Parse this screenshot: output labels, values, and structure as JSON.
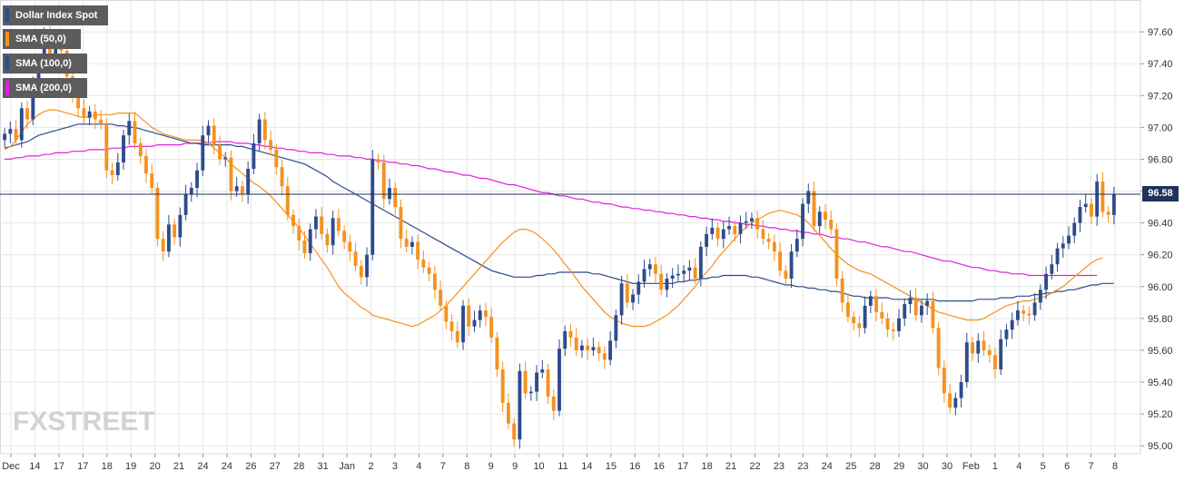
{
  "chart_data": {
    "type": "candlestick",
    "instrument": "Dollar Index Spot",
    "legend": [
      {
        "label": "Dollar Index Spot",
        "color": "#2e4b8c"
      },
      {
        "label": "SMA (50,0)",
        "color": "#f5921e"
      },
      {
        "label": "SMA (100,0)",
        "color": "#2e4b8c"
      },
      {
        "label": "SMA (200,0)",
        "color": "#e020e0"
      }
    ],
    "current_price": "96.58",
    "current_value": 96.58,
    "ylim": [
      94.95,
      97.8
    ],
    "y_ticks": [
      "97.60",
      "97.40",
      "97.20",
      "97.00",
      "96.80",
      "96.60",
      "96.40",
      "96.20",
      "96.00",
      "95.80",
      "95.60",
      "95.40",
      "95.20",
      "95.00"
    ],
    "x_ticks": [
      "Dec",
      "14",
      "17",
      "17",
      "18",
      "19",
      "20",
      "21",
      "24",
      "24",
      "26",
      "27",
      "28",
      "31",
      "Jan",
      "2",
      "3",
      "4",
      "7",
      "8",
      "9",
      "9",
      "10",
      "11",
      "14",
      "15",
      "16",
      "16",
      "17",
      "18",
      "21",
      "22",
      "23",
      "23",
      "24",
      "25",
      "28",
      "29",
      "30",
      "30",
      "Feb",
      "1",
      "4",
      "5",
      "6",
      "7",
      "8"
    ],
    "colors": {
      "up": "#2e4b8c",
      "down": "#f5921e",
      "sma50": "#f5921e",
      "sma100": "#2e4b8c",
      "sma200": "#e020e0",
      "grid": "#e6e6e6"
    },
    "close": [
      96.96,
      96.99,
      96.92,
      97.12,
      97.05,
      97.26,
      97.4,
      97.58,
      97.45,
      97.52,
      97.48,
      97.32,
      97.2,
      97.12,
      97.06,
      97.1,
      97.05,
      97.02,
      96.73,
      96.7,
      96.78,
      96.95,
      97.04,
      96.9,
      96.82,
      96.71,
      96.62,
      96.3,
      96.22,
      96.39,
      96.31,
      96.45,
      96.58,
      96.62,
      96.73,
      96.95,
      97.01,
      96.89,
      96.8,
      96.81,
      96.6,
      96.63,
      96.58,
      96.74,
      96.9,
      97.05,
      96.92,
      96.86,
      96.75,
      96.63,
      96.45,
      96.38,
      96.29,
      96.21,
      96.36,
      96.44,
      96.33,
      96.26,
      96.43,
      96.35,
      96.28,
      96.22,
      96.13,
      96.06,
      96.2,
      96.8,
      96.78,
      96.55,
      96.62,
      96.5,
      96.3,
      96.25,
      96.28,
      96.17,
      96.12,
      96.08,
      95.98,
      95.88,
      95.78,
      95.72,
      95.65,
      95.88,
      95.75,
      95.79,
      95.85,
      95.81,
      95.68,
      95.48,
      95.27,
      95.14,
      95.04,
      95.47,
      95.33,
      95.34,
      95.46,
      95.48,
      95.31,
      95.22,
      95.61,
      95.72,
      95.68,
      95.6,
      95.63,
      95.6,
      95.62,
      95.58,
      95.54,
      95.66,
      95.82,
      96.02,
      95.9,
      95.95,
      96.03,
      96.11,
      96.14,
      96.08,
      95.98,
      96.05,
      96.07,
      96.08,
      96.1,
      96.12,
      96.05,
      96.25,
      96.33,
      96.37,
      96.3,
      96.36,
      96.38,
      96.33,
      96.4,
      96.41,
      96.43,
      96.36,
      96.3,
      96.28,
      96.22,
      96.1,
      96.05,
      96.22,
      96.3,
      96.52,
      96.6,
      96.38,
      96.47,
      96.42,
      96.36,
      96.05,
      95.9,
      95.81,
      95.77,
      95.74,
      95.88,
      95.94,
      95.84,
      95.8,
      95.73,
      95.72,
      95.8,
      95.89,
      95.93,
      95.82,
      95.88,
      95.91,
      95.74,
      95.49,
      95.33,
      95.24,
      95.3,
      95.4,
      95.65,
      95.58,
      95.66,
      95.6,
      95.57,
      95.48,
      95.67,
      95.73,
      95.79,
      95.85,
      95.83,
      95.82,
      95.9,
      95.98,
      96.08,
      96.14,
      96.24,
      96.27,
      96.32,
      96.4,
      96.5,
      96.52,
      96.44,
      96.66,
      96.47,
      96.45,
      96.58
    ],
    "sma50": [
      96.86,
      96.88,
      96.92,
      96.97,
      97.02,
      97.05,
      97.08,
      97.1,
      97.11,
      97.11,
      97.1,
      97.09,
      97.08,
      97.07,
      97.06,
      97.07,
      97.08,
      97.08,
      97.08,
      97.08,
      97.09,
      97.09,
      97.09,
      97.09,
      97.06,
      97.03,
      97.0,
      96.98,
      96.96,
      96.95,
      96.94,
      96.93,
      96.92,
      96.92,
      96.92,
      96.92,
      96.9,
      96.87,
      96.84,
      96.81,
      96.77,
      96.74,
      96.71,
      96.68,
      96.65,
      96.63,
      96.6,
      96.57,
      96.53,
      96.49,
      96.45,
      96.41,
      96.37,
      96.32,
      96.27,
      96.22,
      96.17,
      96.12,
      96.06,
      96.0,
      95.96,
      95.93,
      95.9,
      95.87,
      95.85,
      95.82,
      95.81,
      95.8,
      95.79,
      95.78,
      95.77,
      95.76,
      95.75,
      95.76,
      95.78,
      95.8,
      95.82,
      95.85,
      95.88,
      95.92,
      95.96,
      96.0,
      96.04,
      96.08,
      96.12,
      96.16,
      96.2,
      96.24,
      96.28,
      96.31,
      96.34,
      96.36,
      96.36,
      96.35,
      96.33,
      96.3,
      96.27,
      96.23,
      96.19,
      96.14,
      96.1,
      96.05,
      96.0,
      95.96,
      95.92,
      95.88,
      95.84,
      95.81,
      95.79,
      95.77,
      95.76,
      95.75,
      95.75,
      95.75,
      95.76,
      95.78,
      95.8,
      95.82,
      95.85,
      95.88,
      95.92,
      95.96,
      96.0,
      96.05,
      96.09,
      96.13,
      96.18,
      96.22,
      96.26,
      96.3,
      96.34,
      96.37,
      96.4,
      96.42,
      96.44,
      96.46,
      96.47,
      96.48,
      96.47,
      96.46,
      96.45,
      96.43,
      96.4,
      96.36,
      96.32,
      96.28,
      96.24,
      96.2,
      96.17,
      96.14,
      96.12,
      96.1,
      96.09,
      96.08,
      96.06,
      96.04,
      96.02,
      96.0,
      95.98,
      95.96,
      95.94,
      95.92,
      95.9,
      95.88,
      95.86,
      95.84,
      95.83,
      95.82,
      95.81,
      95.8,
      95.79,
      95.79,
      95.79,
      95.8,
      95.82,
      95.84,
      95.86,
      95.88,
      95.89,
      95.9,
      95.91,
      95.91,
      95.92,
      95.93,
      95.94,
      95.96,
      95.98,
      96.0,
      96.03,
      96.06,
      96.09,
      96.12,
      96.15,
      96.17,
      96.18
    ],
    "sma100": [
      96.87,
      96.88,
      96.89,
      96.9,
      96.91,
      96.93,
      96.95,
      96.96,
      96.97,
      96.98,
      96.99,
      97.0,
      97.01,
      97.02,
      97.02,
      97.02,
      97.02,
      97.02,
      97.02,
      97.02,
      97.01,
      97.01,
      97.0,
      97.0,
      96.99,
      96.98,
      96.97,
      96.96,
      96.95,
      96.94,
      96.93,
      96.92,
      96.91,
      96.9,
      96.9,
      96.89,
      96.89,
      96.89,
      96.89,
      96.89,
      96.89,
      96.88,
      96.88,
      96.87,
      96.86,
      96.85,
      96.84,
      96.83,
      96.82,
      96.81,
      96.8,
      96.79,
      96.78,
      96.77,
      96.75,
      96.73,
      96.71,
      96.69,
      96.66,
      96.64,
      96.62,
      96.6,
      96.58,
      96.56,
      96.54,
      96.52,
      96.5,
      96.48,
      96.46,
      96.44,
      96.42,
      96.4,
      96.38,
      96.36,
      96.34,
      96.32,
      96.3,
      96.28,
      96.26,
      96.24,
      96.22,
      96.2,
      96.18,
      96.16,
      96.14,
      96.12,
      96.1,
      96.09,
      96.08,
      96.07,
      96.06,
      96.06,
      96.06,
      96.06,
      96.07,
      96.07,
      96.08,
      96.08,
      96.09,
      96.09,
      96.09,
      96.09,
      96.09,
      96.09,
      96.08,
      96.08,
      96.07,
      96.06,
      96.05,
      96.04,
      96.03,
      96.02,
      96.02,
      96.02,
      96.02,
      96.02,
      96.02,
      96.02,
      96.02,
      96.03,
      96.03,
      96.04,
      96.04,
      96.05,
      96.05,
      96.06,
      96.06,
      96.07,
      96.07,
      96.07,
      96.07,
      96.07,
      96.06,
      96.06,
      96.05,
      96.04,
      96.03,
      96.02,
      96.01,
      96.01,
      96.0,
      96.0,
      95.99,
      95.99,
      95.98,
      95.98,
      95.97,
      95.97,
      95.96,
      95.95,
      95.94,
      95.94,
      95.93,
      95.93,
      95.93,
      95.93,
      95.93,
      95.92,
      95.92,
      95.92,
      95.92,
      95.92,
      95.92,
      95.92,
      95.92,
      95.91,
      95.91,
      95.91,
      95.91,
      95.91,
      95.91,
      95.91,
      95.92,
      95.92,
      95.92,
      95.92,
      95.93,
      95.93,
      95.93,
      95.94,
      95.94,
      95.94,
      95.95,
      95.95,
      95.96,
      95.96,
      95.97,
      95.97,
      95.98,
      95.98,
      95.99,
      96.0,
      96.01,
      96.01,
      96.02,
      96.02,
      96.02
    ],
    "sma200": [
      96.8,
      96.8,
      96.81,
      96.81,
      96.82,
      96.82,
      96.82,
      96.83,
      96.83,
      96.84,
      96.84,
      96.84,
      96.85,
      96.85,
      96.85,
      96.86,
      96.86,
      96.86,
      96.86,
      96.87,
      96.87,
      96.87,
      96.88,
      96.88,
      96.88,
      96.88,
      96.88,
      96.89,
      96.89,
      96.89,
      96.89,
      96.89,
      96.9,
      96.9,
      96.9,
      96.9,
      96.9,
      96.91,
      96.91,
      96.91,
      96.91,
      96.9,
      96.9,
      96.9,
      96.89,
      96.89,
      96.88,
      96.88,
      96.87,
      96.87,
      96.86,
      96.86,
      96.85,
      96.85,
      96.84,
      96.84,
      96.84,
      96.83,
      96.83,
      96.82,
      96.82,
      96.82,
      96.81,
      96.81,
      96.8,
      96.8,
      96.79,
      96.79,
      96.78,
      96.78,
      96.77,
      96.77,
      96.76,
      96.76,
      96.75,
      96.74,
      96.74,
      96.73,
      96.72,
      96.72,
      96.71,
      96.7,
      96.7,
      96.69,
      96.68,
      96.68,
      96.67,
      96.66,
      96.65,
      96.64,
      96.64,
      96.63,
      96.62,
      96.61,
      96.6,
      96.59,
      96.59,
      96.58,
      96.57,
      96.57,
      96.56,
      96.55,
      96.55,
      96.54,
      96.53,
      96.53,
      96.52,
      96.52,
      96.51,
      96.5,
      96.5,
      96.49,
      96.49,
      96.48,
      96.48,
      96.47,
      96.47,
      96.46,
      96.46,
      96.45,
      96.45,
      96.44,
      96.44,
      96.43,
      96.43,
      96.42,
      96.42,
      96.41,
      96.41,
      96.4,
      96.4,
      96.39,
      96.39,
      96.38,
      96.38,
      96.37,
      96.37,
      96.36,
      96.36,
      96.35,
      96.35,
      96.34,
      96.34,
      96.33,
      96.33,
      96.32,
      96.31,
      96.31,
      96.3,
      96.3,
      96.29,
      96.28,
      96.28,
      96.27,
      96.26,
      96.25,
      96.25,
      96.24,
      96.23,
      96.22,
      96.22,
      96.21,
      96.2,
      96.19,
      96.18,
      96.17,
      96.16,
      96.16,
      96.15,
      96.14,
      96.13,
      96.12,
      96.12,
      96.11,
      96.1,
      96.1,
      96.09,
      96.09,
      96.08,
      96.08,
      96.08,
      96.07,
      96.07,
      96.07,
      96.07,
      96.07,
      96.07,
      96.07,
      96.07,
      96.07,
      96.07,
      96.07,
      96.07,
      96.07
    ]
  },
  "watermark": {
    "part1": "FX",
    "part2": "STREET"
  }
}
